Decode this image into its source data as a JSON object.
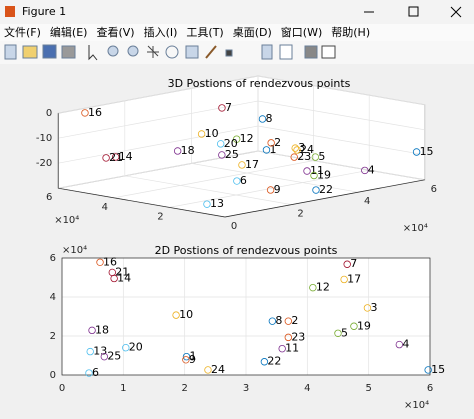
{
  "window": {
    "title": "Figure 1"
  },
  "menu": [
    "文件(F)",
    "编辑(E)",
    "查看(V)",
    "插入(I)",
    "工具(T)",
    "桌面(D)",
    "窗口(W)",
    "帮助(H)"
  ],
  "chart_data": [
    {
      "type": "scatter3d",
      "title": "3D Postions of rendezvous points",
      "labels": [
        "1",
        "2",
        "3",
        "4",
        "5",
        "6",
        "7",
        "8",
        "9",
        "10",
        "11",
        "12",
        "13",
        "14",
        "15",
        "16",
        "17",
        "18",
        "19",
        "20",
        "21",
        "22",
        "23",
        "24",
        "25"
      ],
      "x": [
        2.03,
        3.69,
        4.98,
        5.5,
        4.5,
        0.44,
        4.65,
        3.43,
        2.02,
        1.86,
        3.59,
        4.09,
        0.46,
        0.85,
        5.97,
        0.62,
        4.6,
        0.49,
        4.76,
        1.04,
        0.82,
        3.3,
        3.69,
        2.38,
        0.69
      ],
      "y": [
        0.94,
        2.76,
        3.44,
        1.56,
        2.14,
        0.1,
        5.68,
        2.76,
        0.78,
        3.07,
        1.35,
        4.48,
        1.2,
        4.95,
        0.26,
        5.78,
        4.9,
        2.29,
        2.5,
        1.4,
        5.26,
        0.68,
        1.93,
        0.26,
        0.94
      ],
      "z": [
        -10,
        -14.8,
        -21.4,
        -28,
        -21.3,
        -16.9,
        -8.8,
        -4.6,
        -25.7,
        -7.3,
        -23.1,
        -17.6,
        -28.3,
        -17.6,
        -19.3,
        -1,
        -30,
        -9.2,
        -30,
        -6,
        -18.5,
        -28.7,
        -18.9,
        -9.6,
        -8.7
      ],
      "xlim": [
        0,
        6
      ],
      "ylim": [
        0,
        6
      ],
      "zlim": [
        -30,
        0
      ],
      "xticks": [
        0,
        2,
        4,
        6
      ],
      "yticks": [
        2,
        4,
        6
      ],
      "zticks": [
        -20,
        -10,
        0
      ],
      "x_exponent": "×10⁴",
      "y_exponent": "×10⁴",
      "colors": [
        "#0072BD",
        "#D95319",
        "#EDB120",
        "#7E2F8E",
        "#77AC30",
        "#4DBEEE",
        "#A2142F"
      ],
      "grid": true
    },
    {
      "type": "scatter",
      "title": "2D Postions of rendezvous points",
      "labels": [
        "1",
        "2",
        "3",
        "4",
        "5",
        "6",
        "7",
        "8",
        "9",
        "10",
        "11",
        "12",
        "13",
        "14",
        "15",
        "16",
        "17",
        "18",
        "19",
        "20",
        "21",
        "22",
        "23",
        "24",
        "25"
      ],
      "x": [
        2.03,
        3.69,
        4.98,
        5.5,
        4.5,
        0.44,
        4.65,
        3.43,
        2.02,
        1.86,
        3.59,
        4.09,
        0.46,
        0.85,
        5.97,
        0.62,
        4.6,
        0.49,
        4.76,
        1.04,
        0.82,
        3.3,
        3.69,
        2.38,
        0.69
      ],
      "y": [
        0.94,
        2.76,
        3.44,
        1.56,
        2.14,
        0.1,
        5.68,
        2.76,
        0.78,
        3.07,
        1.35,
        4.48,
        1.2,
        4.95,
        0.26,
        5.78,
        4.9,
        2.29,
        2.5,
        1.4,
        5.26,
        0.68,
        1.93,
        0.26,
        0.94
      ],
      "xlim": [
        0,
        6
      ],
      "ylim": [
        0,
        6
      ],
      "xticks": [
        0,
        1,
        2,
        3,
        4,
        5,
        6
      ],
      "yticks": [
        0,
        2,
        4,
        6
      ],
      "x_exponent": "×10⁴",
      "y_exponent": "×10⁴",
      "colors": [
        "#0072BD",
        "#D95319",
        "#EDB120",
        "#7E2F8E",
        "#77AC30",
        "#4DBEEE",
        "#A2142F"
      ],
      "grid": true
    }
  ]
}
